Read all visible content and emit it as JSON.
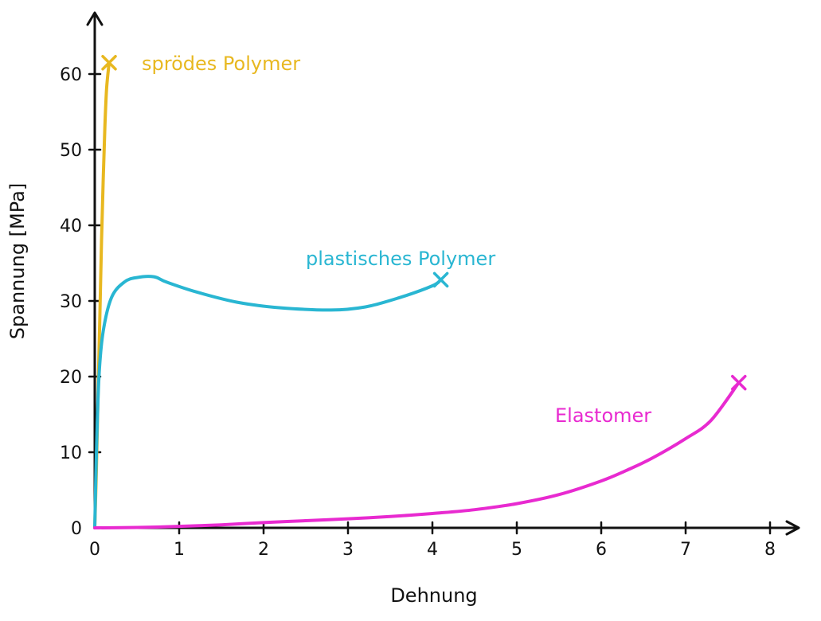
{
  "chart_data": {
    "type": "line",
    "title": "",
    "xlabel": "Dehnung",
    "ylabel": "Spannung [MPa]",
    "xlim": [
      0,
      8
    ],
    "ylim": [
      0,
      60
    ],
    "xticks": [
      0,
      1,
      2,
      3,
      4,
      5,
      6,
      7,
      8
    ],
    "yticks": [
      0,
      10,
      20,
      30,
      40,
      50,
      60
    ],
    "grid": false,
    "legend": "none",
    "series": [
      {
        "name": "sprödes Polymer",
        "color": "#E8B820",
        "end_marker": "x",
        "points": [
          [
            0,
            0
          ],
          [
            0.02,
            8
          ],
          [
            0.04,
            18
          ],
          [
            0.06,
            28
          ],
          [
            0.08,
            38
          ],
          [
            0.1,
            46
          ],
          [
            0.12,
            53
          ],
          [
            0.14,
            58
          ],
          [
            0.17,
            61.5
          ]
        ]
      },
      {
        "name": "plastisches Polymer",
        "color": "#29B6D2",
        "end_marker": "x",
        "points": [
          [
            0,
            0
          ],
          [
            0.02,
            10
          ],
          [
            0.05,
            20
          ],
          [
            0.1,
            26
          ],
          [
            0.2,
            30.5
          ],
          [
            0.35,
            32.5
          ],
          [
            0.5,
            33.1
          ],
          [
            0.7,
            33.2
          ],
          [
            0.85,
            32.5
          ],
          [
            1.2,
            31.2
          ],
          [
            1.7,
            29.8
          ],
          [
            2.2,
            29.1
          ],
          [
            2.8,
            28.8
          ],
          [
            3.2,
            29.2
          ],
          [
            3.6,
            30.4
          ],
          [
            4.0,
            32
          ],
          [
            4.1,
            32.8
          ]
        ]
      },
      {
        "name": "Elastomer",
        "color": "#E82AD0",
        "end_marker": "x",
        "points": [
          [
            0,
            0
          ],
          [
            0.5,
            0.05
          ],
          [
            1.0,
            0.2
          ],
          [
            1.5,
            0.4
          ],
          [
            2.0,
            0.7
          ],
          [
            2.5,
            0.95
          ],
          [
            3.0,
            1.2
          ],
          [
            3.5,
            1.5
          ],
          [
            4.0,
            1.9
          ],
          [
            4.5,
            2.4
          ],
          [
            5.0,
            3.2
          ],
          [
            5.5,
            4.4
          ],
          [
            6.0,
            6.2
          ],
          [
            6.3,
            7.6
          ],
          [
            6.6,
            9.2
          ],
          [
            7.0,
            11.8
          ],
          [
            7.3,
            14.2
          ],
          [
            7.63,
            19.2
          ]
        ]
      }
    ]
  }
}
